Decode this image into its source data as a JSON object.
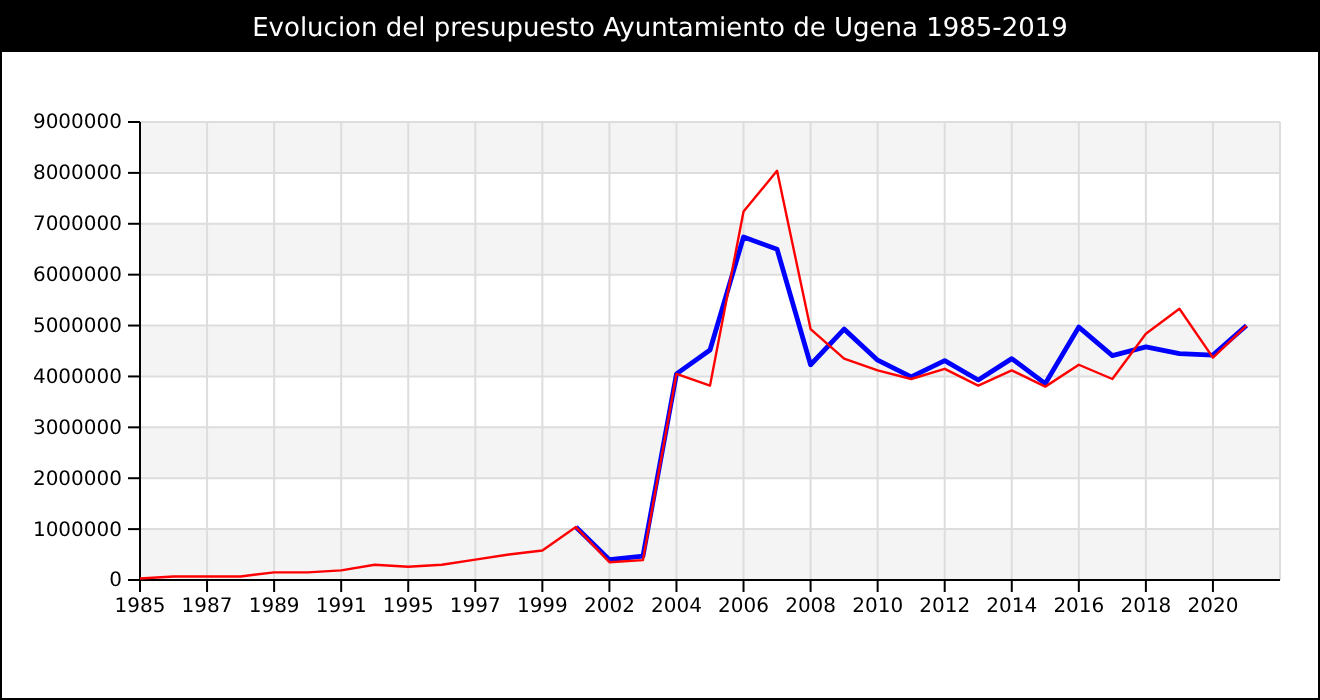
{
  "chart_data": {
    "type": "line",
    "title": "Evolucion del presupuesto Ayuntamiento de Ugena 1985-2019",
    "categories": [
      "1985",
      null,
      "1987",
      null,
      "1989",
      null,
      "1991",
      null,
      "1995",
      null,
      "1997",
      null,
      "1999",
      null,
      "2002",
      null,
      "2004",
      null,
      "2006",
      null,
      "2008",
      null,
      "2010",
      null,
      "2012",
      null,
      "2014",
      null,
      "2016",
      null,
      "2018",
      null,
      "2020",
      null,
      null
    ],
    "series": [
      {
        "color": "#0000ff",
        "values": [
          null,
          null,
          null,
          null,
          null,
          null,
          null,
          null,
          null,
          null,
          null,
          null,
          null,
          1040000,
          400000,
          470000,
          4050000,
          4520000,
          6740000,
          6500000,
          4230000,
          4930000,
          4320000,
          3990000,
          4310000,
          3930000,
          4350000,
          3860000,
          4970000,
          4410000,
          4580000,
          4450000,
          4420000,
          5000000,
          null
        ]
      },
      {
        "color": "#ff0000",
        "values": [
          30000,
          70000,
          70000,
          70000,
          150000,
          150000,
          190000,
          300000,
          260000,
          300000,
          400000,
          500000,
          580000,
          1040000,
          350000,
          390000,
          4050000,
          3820000,
          7240000,
          8040000,
          4930000,
          4350000,
          4120000,
          3950000,
          4150000,
          3820000,
          4120000,
          3800000,
          4230000,
          3950000,
          4840000,
          5330000,
          4370000,
          5000000,
          null
        ]
      }
    ],
    "ylim": [
      0,
      9000000
    ],
    "yticks": [
      0,
      1000000,
      2000000,
      3000000,
      4000000,
      5000000,
      6000000,
      7000000,
      8000000,
      9000000
    ],
    "grid": true,
    "marker": "none",
    "line_style": "solid"
  }
}
